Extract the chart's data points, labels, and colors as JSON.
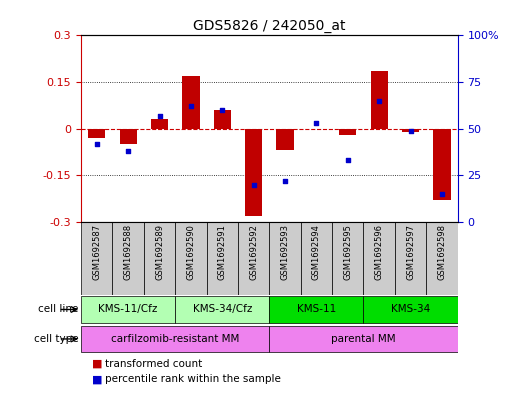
{
  "title": "GDS5826 / 242050_at",
  "samples": [
    "GSM1692587",
    "GSM1692588",
    "GSM1692589",
    "GSM1692590",
    "GSM1692591",
    "GSM1692592",
    "GSM1692593",
    "GSM1692594",
    "GSM1692595",
    "GSM1692596",
    "GSM1692597",
    "GSM1692598"
  ],
  "transformed_count": [
    -0.03,
    -0.05,
    0.03,
    0.17,
    0.06,
    -0.28,
    -0.07,
    0.0,
    -0.02,
    0.185,
    -0.01,
    -0.23
  ],
  "percentile_rank": [
    42,
    38,
    57,
    62,
    60,
    20,
    22,
    53,
    33,
    65,
    49,
    15
  ],
  "ylim_left": [
    -0.3,
    0.3
  ],
  "ylim_right": [
    0,
    100
  ],
  "yticks_left": [
    -0.3,
    -0.15,
    0,
    0.15,
    0.3
  ],
  "yticks_right": [
    0,
    25,
    50,
    75,
    100
  ],
  "ytick_labels_right": [
    "0",
    "25",
    "50",
    "75",
    "100%"
  ],
  "bar_color": "#c00000",
  "dot_color": "#0000cc",
  "zero_line_color": "#cc0000",
  "grid_color": "#000000",
  "cell_line_groups": [
    {
      "label": "KMS-11/Cfz",
      "start": 0,
      "end": 3,
      "color": "#b3ffb3"
    },
    {
      "label": "KMS-34/Cfz",
      "start": 3,
      "end": 6,
      "color": "#b3ffb3"
    },
    {
      "label": "KMS-11",
      "start": 6,
      "end": 9,
      "color": "#00dd00"
    },
    {
      "label": "KMS-34",
      "start": 9,
      "end": 12,
      "color": "#00dd00"
    }
  ],
  "cell_type_groups": [
    {
      "label": "carfilzomib-resistant MM",
      "start": 0,
      "end": 6,
      "color": "#ee82ee"
    },
    {
      "label": "parental MM",
      "start": 6,
      "end": 12,
      "color": "#ee82ee"
    }
  ],
  "legend_bar_label": "transformed count",
  "legend_dot_label": "percentile rank within the sample",
  "left_ycolor": "#cc0000",
  "right_ycolor": "#0000cc",
  "sample_box_color": "#cccccc"
}
